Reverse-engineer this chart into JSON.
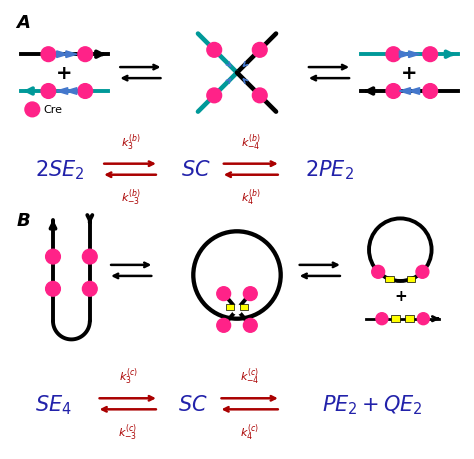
{
  "bg_color": "#ffffff",
  "dark_blue": "#2222aa",
  "dark_red": "#aa0000",
  "teal": "#009999",
  "pink": "#ff2288",
  "black": "#000000",
  "blue_arrow": "#4477cc",
  "panel_A_label": "A",
  "panel_B_label": "B",
  "k3b_top": "$k_3^{(b)}$",
  "k3b_bot": "$k_{-3}^{(b)}$",
  "k4b_top": "$k_{-4}^{(b)}$",
  "k4b_bot": "$k_4^{(b)}$",
  "k3c_top": "$k_3^{(c)}$",
  "k3c_bot": "$k_{-3}^{(c)}$",
  "k4c_top": "$k_{-4}^{(c)}$",
  "k4c_bot": "$k_4^{(c)}$",
  "figsize": [
    4.74,
    4.6
  ],
  "dpi": 100
}
